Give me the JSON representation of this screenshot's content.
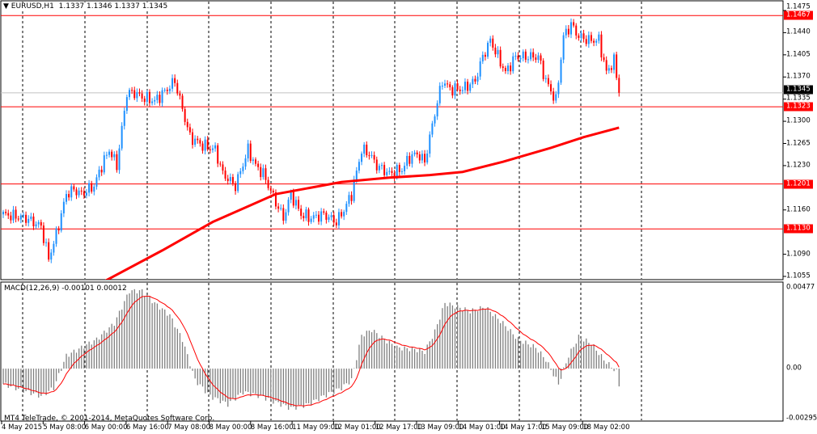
{
  "header": {
    "symbol_label": "EURUSD,H1",
    "ohlc": "1.1337 1.1346 1.1337 1.1345",
    "menu_icon": "triangle-down-icon"
  },
  "copyright": "MT4 TeleTrade, © 2001-2014, MetaQuotes Software Corp.",
  "colors": {
    "bull": "#1e90ff",
    "bear": "#ff0000",
    "level": "#ff0000",
    "ma": "#ff0000",
    "histogram": "#808080",
    "signal": "#ff0000",
    "bid": "#c0c0c0"
  },
  "price_axis": {
    "range": [
      1.1055,
      1.1475
    ],
    "ticks": [
      "1.1475",
      "1.1440",
      "1.1405",
      "1.1370",
      "1.1335",
      "1.1300",
      "1.1265",
      "1.1230",
      "1.1160",
      "1.1090",
      "1.1055"
    ],
    "bid": "1.1345",
    "levels": [
      "1.1467",
      "1.1323",
      "1.1201",
      "1.1130"
    ]
  },
  "time_axis": {
    "labels": [
      "4 May 2015",
      "5 May 08:00",
      "6 May 00:00",
      "6 May 16:00",
      "7 May 08:00",
      "8 May 00:00",
      "8 May 16:00",
      "11 May 09:00",
      "12 May 01:00",
      "12 May 17:00",
      "13 May 09:00",
      "14 May 01:00",
      "14 May 17:00",
      "15 May 09:00",
      "18 May 02:00"
    ]
  },
  "chart_data": [
    {
      "type": "candlestick",
      "title": "EURUSD,H1",
      "ylim": [
        1.1055,
        1.1475
      ],
      "close_anchors_bar_price": [
        [
          0,
          1.1153
        ],
        [
          9,
          1.1147
        ],
        [
          15,
          1.1134
        ],
        [
          18,
          1.1083
        ],
        [
          21,
          1.1121
        ],
        [
          25,
          1.1185
        ],
        [
          28,
          1.1192
        ],
        [
          31,
          1.1185
        ],
        [
          36,
          1.1198
        ],
        [
          39,
          1.123
        ],
        [
          42,
          1.1255
        ],
        [
          45,
          1.123
        ],
        [
          49,
          1.1345
        ],
        [
          52,
          1.1345
        ],
        [
          55,
          1.1338
        ],
        [
          60,
          1.1332
        ],
        [
          65,
          1.1351
        ],
        [
          68,
          1.1364
        ],
        [
          71,
          1.1319
        ],
        [
          74,
          1.1275
        ],
        [
          79,
          1.1262
        ],
        [
          84,
          1.1255
        ],
        [
          87,
          1.1217
        ],
        [
          92,
          1.1198
        ],
        [
          97,
          1.1255
        ],
        [
          100,
          1.123
        ],
        [
          103,
          1.1217
        ],
        [
          108,
          1.1172
        ],
        [
          111,
          1.1147
        ],
        [
          114,
          1.1185
        ],
        [
          118,
          1.1153
        ],
        [
          122,
          1.1147
        ],
        [
          127,
          1.1153
        ],
        [
          132,
          1.1141
        ],
        [
          135,
          1.116
        ],
        [
          138,
          1.1185
        ],
        [
          142,
          1.1255
        ],
        [
          145,
          1.1249
        ],
        [
          148,
          1.123
        ],
        [
          153,
          1.1217
        ],
        [
          158,
          1.1224
        ],
        [
          161,
          1.1243
        ],
        [
          164,
          1.1249
        ],
        [
          167,
          1.1236
        ],
        [
          171,
          1.1313
        ],
        [
          174,
          1.1364
        ],
        [
          177,
          1.1351
        ],
        [
          182,
          1.1351
        ],
        [
          187,
          1.1364
        ],
        [
          190,
          1.1402
        ],
        [
          193,
          1.1428
        ],
        [
          196,
          1.1402
        ],
        [
          199,
          1.1377
        ],
        [
          203,
          1.1402
        ],
        [
          207,
          1.1402
        ],
        [
          212,
          1.1402
        ],
        [
          215,
          1.1364
        ],
        [
          219,
          1.1332
        ],
        [
          222,
          1.1434
        ],
        [
          225,
          1.1453
        ],
        [
          228,
          1.1434
        ],
        [
          232,
          1.1428
        ],
        [
          236,
          1.1428
        ],
        [
          239,
          1.1377
        ],
        [
          242,
          1.1396
        ],
        [
          244,
          1.1345
        ]
      ]
    },
    {
      "type": "line",
      "series": [
        {
          "name": "",
          "anchors_bar_price": [
            [
              39,
              1.1045
            ],
            [
              63,
              1.1096
            ],
            [
              83,
              1.1141
            ],
            [
              108,
              1.1185
            ],
            [
              134,
              1.1204
            ],
            [
              153,
              1.1211
            ],
            [
              169,
              1.1215
            ],
            [
              182,
              1.122
            ],
            [
              198,
              1.1236
            ],
            [
              217,
              1.1258
            ],
            [
              230,
              1.1275
            ],
            [
              244,
              1.129
            ]
          ]
        }
      ]
    },
    {
      "type": "bar",
      "title": "MACD(12,26,9) -0.00101 0.00012",
      "ylim": [
        -0.00295,
        0.00477
      ],
      "ticks": [
        "0.00477",
        "0.00",
        "-0.00295"
      ],
      "histogram_anchors_bar_value": [
        [
          0,
          -0.00091
        ],
        [
          15,
          -0.00162
        ],
        [
          20,
          -0.00114
        ],
        [
          25,
          0.00076
        ],
        [
          31,
          0.00124
        ],
        [
          37,
          0.00172
        ],
        [
          44,
          0.00267
        ],
        [
          50,
          0.00458
        ],
        [
          55,
          0.00458
        ],
        [
          60,
          0.00386
        ],
        [
          66,
          0.00315
        ],
        [
          71,
          0.00172
        ],
        [
          76,
          -0.00067
        ],
        [
          82,
          -0.00162
        ],
        [
          89,
          -0.0021
        ],
        [
          95,
          -0.00138
        ],
        [
          102,
          -0.00162
        ],
        [
          110,
          -0.0021
        ],
        [
          114,
          -0.00234
        ],
        [
          121,
          -0.0021
        ],
        [
          127,
          -0.00162
        ],
        [
          134,
          -0.00114
        ],
        [
          138,
          -0.00067
        ],
        [
          142,
          0.00196
        ],
        [
          146,
          0.00229
        ],
        [
          151,
          0.00172
        ],
        [
          156,
          0.00124
        ],
        [
          163,
          0.00114
        ],
        [
          167,
          0.001
        ],
        [
          171,
          0.00219
        ],
        [
          175,
          0.00386
        ],
        [
          180,
          0.00363
        ],
        [
          185,
          0.00339
        ],
        [
          191,
          0.00363
        ],
        [
          198,
          0.00267
        ],
        [
          204,
          0.00172
        ],
        [
          211,
          0.00124
        ],
        [
          215,
          0.00052
        ],
        [
          220,
          -0.00091
        ],
        [
          224,
          0.00076
        ],
        [
          228,
          0.00186
        ],
        [
          233,
          0.00148
        ],
        [
          238,
          0.00052
        ],
        [
          243,
          -0.00019
        ],
        [
          244,
          -0.00105
        ]
      ],
      "signal_period": 9
    }
  ]
}
